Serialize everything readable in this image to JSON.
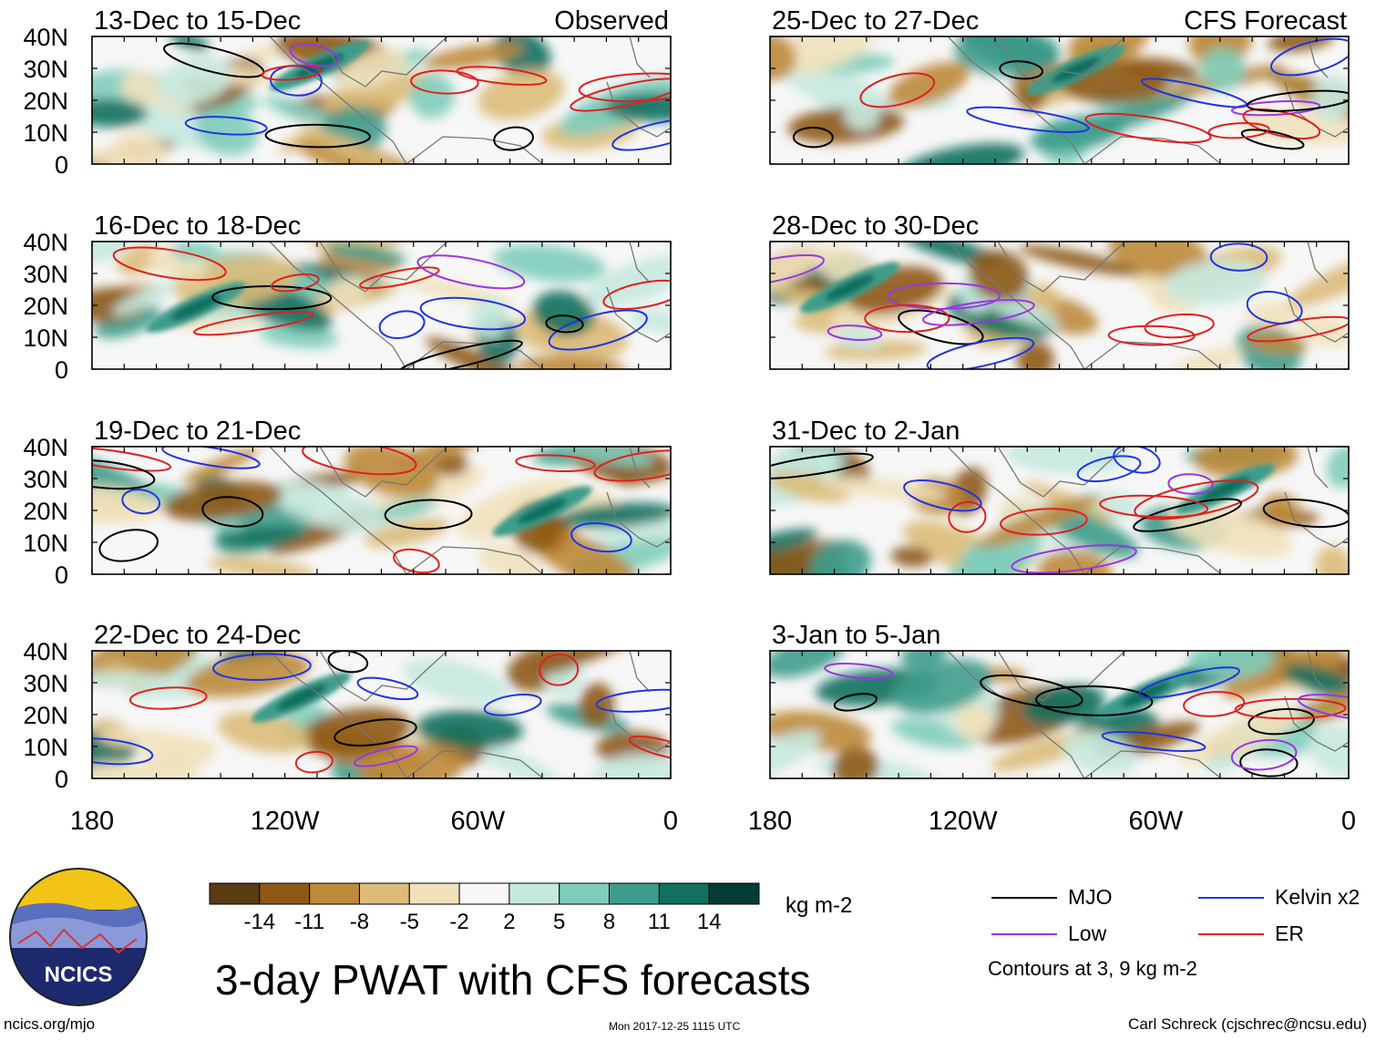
{
  "figure_title": "3-day PWAT with CFS forecasts",
  "units": "kg m-2",
  "y_ticks": [
    "40N",
    "30N",
    "20N",
    "10N",
    "0"
  ],
  "x_ticks": [
    "180",
    "120W",
    "60W",
    "0"
  ],
  "colorbar": {
    "labels": [
      "-14",
      "-11",
      "-8",
      "-5",
      "-2",
      "2",
      "5",
      "8",
      "11",
      "14"
    ],
    "colors": [
      "#5a3b12",
      "#8e5916",
      "#bc8a3a",
      "#dcbb79",
      "#f1e2bc",
      "#f7f7f7",
      "#c6e9df",
      "#7fcdbb",
      "#3e9c8c",
      "#11705e",
      "#053c33"
    ]
  },
  "panels": [
    {
      "id": "p1",
      "title": "13-Dec to 15-Dec",
      "tag": "Observed"
    },
    {
      "id": "p2",
      "title": "16-Dec to 18-Dec",
      "tag": ""
    },
    {
      "id": "p3",
      "title": "19-Dec to 21-Dec",
      "tag": ""
    },
    {
      "id": "p4",
      "title": "22-Dec to 24-Dec",
      "tag": ""
    },
    {
      "id": "p5",
      "title": "25-Dec to 27-Dec",
      "tag": "CFS Forecast"
    },
    {
      "id": "p6",
      "title": "28-Dec to 30-Dec",
      "tag": ""
    },
    {
      "id": "p7",
      "title": "31-Dec to 2-Jan",
      "tag": ""
    },
    {
      "id": "p8",
      "title": "3-Jan to 5-Jan",
      "tag": ""
    }
  ],
  "legend": [
    {
      "label": "MJO",
      "color": "#000000"
    },
    {
      "label": "Kelvin x2",
      "color": "#1f35e0"
    },
    {
      "label": "Low",
      "color": "#9a35e6"
    },
    {
      "label": "ER",
      "color": "#e02020"
    }
  ],
  "contour_note": "Contours at 3, 9 kg m-2",
  "logo_text": "NCICS",
  "footer": {
    "link": "ncics.org/mjo",
    "stamp": "Mon 2017-12-25 1115 UTC",
    "credit": "Carl Schreck (cjschrec@ncsu.edu)"
  }
}
